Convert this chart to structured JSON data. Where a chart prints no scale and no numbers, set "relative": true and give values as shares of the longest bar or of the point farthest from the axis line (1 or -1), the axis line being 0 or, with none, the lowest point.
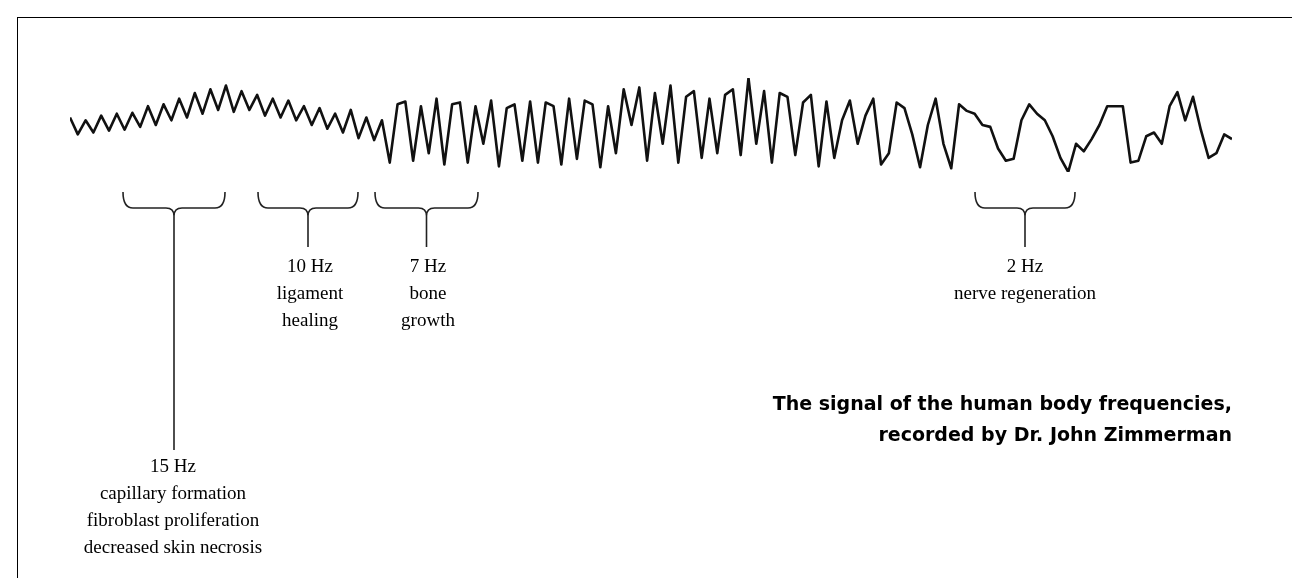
{
  "chart_data": {
    "type": "line",
    "relative": true,
    "title": "The signal of the human body frequencies,\nrecorded by Dr. John Zimmerman",
    "categories": [
      null,
      null,
      null,
      null,
      null,
      null,
      null,
      null,
      null,
      null,
      null,
      null,
      null,
      null,
      null,
      null,
      null,
      null,
      null,
      null,
      null,
      null,
      null,
      null,
      null,
      null,
      null,
      null,
      null,
      null,
      null,
      null,
      null,
      null,
      null,
      null,
      null,
      null,
      null,
      null,
      null,
      null,
      null,
      null,
      null,
      null,
      null,
      null,
      null,
      null,
      null,
      null,
      null,
      null,
      null,
      null,
      null,
      null,
      null,
      null,
      null,
      null,
      null,
      null,
      null,
      null,
      null,
      null,
      null,
      null,
      null,
      null,
      null,
      null,
      null,
      null,
      null,
      null,
      null,
      null,
      null,
      null,
      null,
      null,
      null,
      null,
      null,
      null,
      null,
      null,
      null,
      null,
      null,
      null,
      null,
      null,
      null,
      null,
      null,
      null,
      null,
      null,
      null,
      null,
      null,
      null,
      null,
      null,
      null,
      null,
      null,
      null,
      null,
      null,
      null,
      null,
      null,
      null,
      null,
      null,
      null,
      null,
      null,
      null,
      null,
      null,
      null,
      null,
      null,
      null,
      null,
      null,
      null,
      null,
      null,
      null,
      null,
      null,
      null,
      null,
      null,
      null,
      null,
      null,
      null,
      null,
      null,
      null,
      null,
      null
    ],
    "series": [
      {
        "color": "#111111",
        "values": [
          0.58,
          0.4,
          0.55,
          0.42,
          0.6,
          0.44,
          0.62,
          0.45,
          0.63,
          0.48,
          0.7,
          0.5,
          0.72,
          0.55,
          0.78,
          0.58,
          0.84,
          0.62,
          0.88,
          0.66,
          0.92,
          0.64,
          0.86,
          0.66,
          0.82,
          0.6,
          0.78,
          0.58,
          0.76,
          0.55,
          0.7,
          0.5,
          0.68,
          0.46,
          0.62,
          0.42,
          0.66,
          0.36,
          0.58,
          0.34,
          0.55,
          0.1,
          0.72,
          0.75,
          0.12,
          0.7,
          0.2,
          0.78,
          0.08,
          0.72,
          0.74,
          0.1,
          0.7,
          0.3,
          0.76,
          0.06,
          0.68,
          0.72,
          0.12,
          0.75,
          0.1,
          0.74,
          0.7,
          0.08,
          0.78,
          0.14,
          0.76,
          0.72,
          0.05,
          0.7,
          0.2,
          0.88,
          0.5,
          0.9,
          0.12,
          0.84,
          0.3,
          0.92,
          0.1,
          0.8,
          0.86,
          0.15,
          0.78,
          0.2,
          0.82,
          0.88,
          0.18,
          1.0,
          0.3,
          0.86,
          0.1,
          0.84,
          0.8,
          0.18,
          0.74,
          0.82,
          0.06,
          0.75,
          0.15,
          0.55,
          0.76,
          0.3,
          0.6,
          0.78,
          0.08,
          0.2,
          0.74,
          0.68,
          0.4,
          0.05,
          0.5,
          0.78,
          0.3,
          0.04,
          0.72,
          0.65,
          0.62,
          0.5,
          0.48,
          0.25,
          0.12,
          0.14,
          0.55,
          0.72,
          0.62,
          0.55,
          0.38,
          0.15,
          0.0,
          0.3,
          0.22,
          0.35,
          0.5,
          0.7,
          0.7,
          0.7,
          0.1,
          0.12,
          0.38,
          0.42,
          0.3,
          0.7,
          0.85,
          0.55,
          0.8,
          0.45,
          0.15,
          0.2,
          0.4,
          0.35
        ]
      }
    ],
    "annotations": [
      "15 Hz\ncapillary formation\nfibroblast proliferation\ndecreased skin necrosis",
      "10 Hz\nligament\nhealing",
      "7 Hz\nbone\ngrowth",
      "2 Hz\nnerve regeneration"
    ]
  }
}
